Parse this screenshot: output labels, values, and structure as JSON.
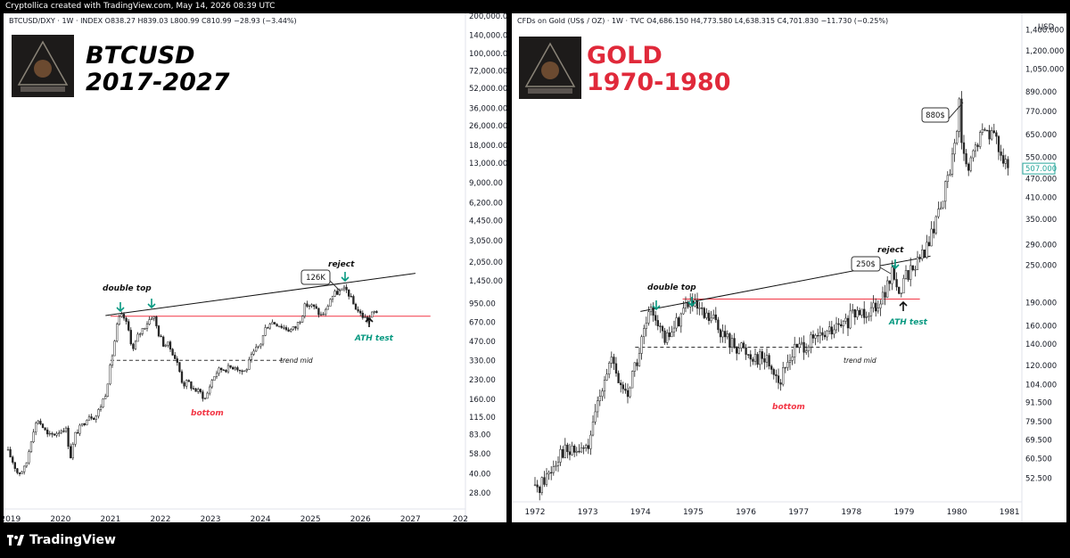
{
  "header": {
    "attribution": "Cryptollica created with TradingView.com, May 14, 2026 08:39 UTC"
  },
  "footer": {
    "brand": "TradingView",
    "logo_icon": "tradingview-logo-icon"
  },
  "colors": {
    "bull": "#26a69a",
    "bear": "#000000",
    "candle": "#222222",
    "trendline": "#111111",
    "ath_line": "#f23645",
    "red_text": "#f23645",
    "teal_text": "#089981",
    "title_black": "#000000",
    "title_red": "#e0293a"
  },
  "chart_data": [
    {
      "type": "candlestick",
      "scale": "log",
      "instrument": "BTCUSD/DXY · 1W · INDEX",
      "ohlc": "O838.27 H839.03 L800.99 C810.99 −28.93 (−3.44%)",
      "title": "BTCUSD",
      "subtitle": "2017-2027",
      "y_ticks": [
        "200,000.00",
        "140,000.00",
        "100,000.00",
        "72,000.00",
        "52,000.00",
        "36,000.00",
        "26,000.00",
        "18,000.00",
        "13,000.00",
        "9,000.00",
        "6,200.00",
        "4,450.00",
        "3,050.00",
        "2,050.00",
        "1,450.00",
        "950.00",
        "670.00",
        "470.00",
        "330.00",
        "230.00",
        "160.00",
        "115.00",
        "83.00",
        "58.00",
        "40.00",
        "28.00"
      ],
      "x_ticks": [
        "2019",
        "2020",
        "2021",
        "2022",
        "2023",
        "2024",
        "2025",
        "2026",
        "2027",
        "202"
      ],
      "annotations": {
        "double_top": "double top",
        "reject": "reject",
        "peak_label": "126K",
        "ath_test": "ATH test",
        "trend_mid": "trend mid",
        "bottom": "bottom"
      },
      "levels": {
        "ath_line": 750,
        "trend_mid": 330
      },
      "trendline": [
        [
          2021.0,
          770
        ],
        [
          2026.0,
          1450
        ]
      ],
      "path": [
        [
          2018.95,
          60
        ],
        [
          2019.0,
          55
        ],
        [
          2019.15,
          40
        ],
        [
          2019.3,
          45
        ],
        [
          2019.45,
          90
        ],
        [
          2019.55,
          110
        ],
        [
          2019.65,
          95
        ],
        [
          2019.75,
          80
        ],
        [
          2019.9,
          85
        ],
        [
          2020.0,
          90
        ],
        [
          2020.1,
          95
        ],
        [
          2020.2,
          55
        ],
        [
          2020.3,
          85
        ],
        [
          2020.45,
          100
        ],
        [
          2020.55,
          120
        ],
        [
          2020.7,
          115
        ],
        [
          2020.8,
          140
        ],
        [
          2020.9,
          180
        ],
        [
          2021.0,
          300
        ],
        [
          2021.1,
          520
        ],
        [
          2021.15,
          700
        ],
        [
          2021.25,
          760
        ],
        [
          2021.35,
          600
        ],
        [
          2021.45,
          400
        ],
        [
          2021.55,
          520
        ],
        [
          2021.65,
          600
        ],
        [
          2021.75,
          680
        ],
        [
          2021.85,
          780
        ],
        [
          2021.95,
          560
        ],
        [
          2022.05,
          450
        ],
        [
          2022.15,
          440
        ],
        [
          2022.25,
          380
        ],
        [
          2022.35,
          300
        ],
        [
          2022.45,
          210
        ],
        [
          2022.55,
          220
        ],
        [
          2022.65,
          195
        ],
        [
          2022.8,
          180
        ],
        [
          2022.9,
          160
        ],
        [
          2023.0,
          215
        ],
        [
          2023.1,
          260
        ],
        [
          2023.2,
          280
        ],
        [
          2023.35,
          285
        ],
        [
          2023.5,
          300
        ],
        [
          2023.6,
          270
        ],
        [
          2023.7,
          270
        ],
        [
          2023.8,
          340
        ],
        [
          2023.9,
          400
        ],
        [
          2024.0,
          450
        ],
        [
          2024.1,
          600
        ],
        [
          2024.2,
          680
        ],
        [
          2024.35,
          650
        ],
        [
          2024.5,
          600
        ],
        [
          2024.6,
          580
        ],
        [
          2024.7,
          610
        ],
        [
          2024.8,
          720
        ],
        [
          2024.9,
          930
        ],
        [
          2025.0,
          920
        ],
        [
          2025.1,
          860
        ],
        [
          2025.2,
          760
        ],
        [
          2025.3,
          820
        ],
        [
          2025.4,
          1050
        ],
        [
          2025.5,
          1150
        ],
        [
          2025.6,
          1200
        ],
        [
          2025.7,
          1230
        ],
        [
          2025.75,
          1180
        ],
        [
          2025.85,
          950
        ],
        [
          2026.0,
          780
        ],
        [
          2026.1,
          720
        ],
        [
          2026.15,
          700
        ],
        [
          2026.25,
          800
        ],
        [
          2026.35,
          830
        ]
      ]
    },
    {
      "type": "candlestick",
      "scale": "log",
      "instrument": "CFDs on Gold (US$ / OZ) · 1W · TVC",
      "ohlc": "O4,686.150 H4,773.580 L4,638.315 C4,701.830 −11.730 (−0.25%)",
      "title": "GOLD",
      "subtitle": "1970-1980",
      "currency": "USD",
      "last_price": "507.000",
      "y_ticks": [
        "1,400.000",
        "1,200.000",
        "1,050.000",
        "890.000",
        "770.000",
        "650.000",
        "550.000",
        "470.000",
        "410.000",
        "350.000",
        "290.000",
        "250.000",
        "190.000",
        "160.000",
        "140.000",
        "120.000",
        "104.000",
        "91.500",
        "79.500",
        "69.500",
        "60.500",
        "52.500"
      ],
      "x_ticks": [
        "1972",
        "1973",
        "1974",
        "1975",
        "1976",
        "1977",
        "1978",
        "1979",
        "1980",
        "1981"
      ],
      "annotations": {
        "double_top": "double top",
        "reject": "reject",
        "peak_label": "250$",
        "high_label": "880$",
        "ath_test": "ATH test",
        "trend_mid": "trend mid",
        "bottom": "bottom"
      },
      "levels": {
        "ath_line": 195,
        "trend_mid": 137
      },
      "trendline": [
        [
          1974.0,
          178
        ],
        [
          1979.4,
          265
        ]
      ],
      "path": [
        [
          1972.0,
          48
        ],
        [
          1972.1,
          50
        ],
        [
          1972.3,
          56
        ],
        [
          1972.5,
          65
        ],
        [
          1972.65,
          63
        ],
        [
          1972.8,
          64
        ],
        [
          1972.95,
          65
        ],
        [
          1973.05,
          68
        ],
        [
          1973.15,
          85
        ],
        [
          1973.3,
          110
        ],
        [
          1973.45,
          125
        ],
        [
          1973.5,
          115
        ],
        [
          1973.6,
          105
        ],
        [
          1973.7,
          100
        ],
        [
          1973.75,
          95
        ],
        [
          1973.85,
          115
        ],
        [
          1973.95,
          125
        ],
        [
          1974.05,
          150
        ],
        [
          1974.15,
          170
        ],
        [
          1974.25,
          180
        ],
        [
          1974.35,
          165
        ],
        [
          1974.45,
          140
        ],
        [
          1974.55,
          150
        ],
        [
          1974.7,
          165
        ],
        [
          1974.8,
          180
        ],
        [
          1974.9,
          190
        ],
        [
          1975.0,
          185
        ],
        [
          1975.1,
          178
        ],
        [
          1975.2,
          170
        ],
        [
          1975.3,
          168
        ],
        [
          1975.45,
          165
        ],
        [
          1975.55,
          150
        ],
        [
          1975.65,
          145
        ],
        [
          1975.75,
          140
        ],
        [
          1975.9,
          138
        ],
        [
          1976.0,
          132
        ],
        [
          1976.1,
          130
        ],
        [
          1976.25,
          128
        ],
        [
          1976.4,
          125
        ],
        [
          1976.55,
          115
        ],
        [
          1976.65,
          105
        ],
        [
          1976.75,
          118
        ],
        [
          1976.85,
          130
        ],
        [
          1976.95,
          136
        ],
        [
          1977.1,
          140
        ],
        [
          1977.25,
          142
        ],
        [
          1977.45,
          148
        ],
        [
          1977.65,
          155
        ],
        [
          1977.85,
          160
        ],
        [
          1978.0,
          170
        ],
        [
          1978.15,
          178
        ],
        [
          1978.3,
          180
        ],
        [
          1978.45,
          188
        ],
        [
          1978.6,
          200
        ],
        [
          1978.7,
          215
        ],
        [
          1978.8,
          240
        ],
        [
          1978.85,
          225
        ],
        [
          1978.9,
          195
        ],
        [
          1978.95,
          215
        ],
        [
          1979.05,
          235
        ],
        [
          1979.15,
          245
        ],
        [
          1979.3,
          260
        ],
        [
          1979.45,
          290
        ],
        [
          1979.55,
          320
        ],
        [
          1979.65,
          380
        ],
        [
          1979.75,
          420
        ],
        [
          1979.85,
          480
        ],
        [
          1979.95,
          600
        ],
        [
          1980.0,
          700
        ],
        [
          1980.05,
          820
        ],
        [
          1980.08,
          650
        ],
        [
          1980.15,
          520
        ],
        [
          1980.22,
          490
        ],
        [
          1980.3,
          560
        ],
        [
          1980.45,
          640
        ],
        [
          1980.55,
          680
        ],
        [
          1980.65,
          660
        ],
        [
          1980.75,
          620
        ],
        [
          1980.85,
          580
        ],
        [
          1980.9,
          520
        ],
        [
          1981.0,
          490
        ]
      ]
    }
  ]
}
